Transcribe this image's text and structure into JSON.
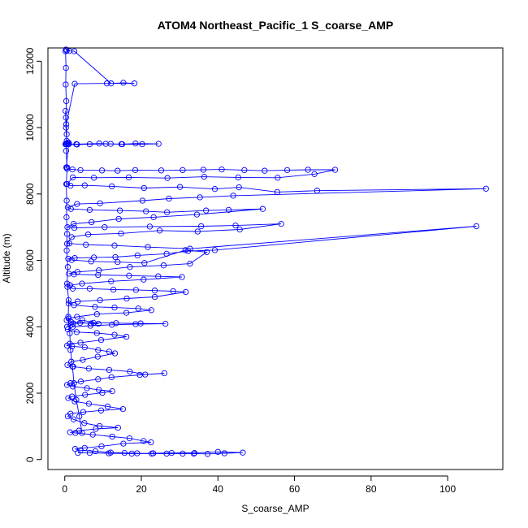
{
  "chart_data": {
    "type": "line",
    "title": "ATOM4 Northeast_Pacific_1 S_coarse_AMP",
    "xlabel": "S_coarse_AMP",
    "ylabel": "Altitude (m)",
    "xlim": [
      -4.4,
      114.4
    ],
    "ylim": [
      -300,
      12400
    ],
    "x_ticks": [
      0,
      20,
      40,
      60,
      80,
      100
    ],
    "y_ticks": [
      0,
      2000,
      4000,
      6000,
      8000,
      10000,
      12000
    ],
    "grid": false,
    "legend": "none",
    "color": "#0000ff",
    "marker": "open-circle",
    "series": [
      {
        "x": [
          0.3,
          0.5,
          1.2,
          2.5,
          12.1,
          15.3,
          18.2,
          11.0,
          2.6,
          0.4,
          0.2,
          0.3,
          0.5,
          1.0,
          0.4,
          0.2,
          0.6,
          0.2,
          0.3,
          0.5,
          1.1,
          0.8,
          3.0,
          9.0,
          12.0,
          15.0,
          18.5,
          24.5,
          20.2,
          14.8,
          10.7,
          6.5,
          3.2,
          1.0,
          0.4,
          0.6,
          2.0,
          4.1,
          9.7,
          13.8,
          18.4,
          25.2,
          30.8,
          36.2,
          41.0,
          46.9,
          52.2,
          58.1,
          63.5,
          70.6,
          65.2,
          55.6,
          45.3,
          36.4,
          26.8,
          16.7,
          7.6,
          2.1,
          0.6,
          1.5,
          5.2,
          12.3,
          20.7,
          30.1,
          39.2,
          45.5,
          55.5,
          65.9,
          110.0,
          44.0,
          35.3,
          27.2,
          20.3,
          9.2,
          3.2,
          0.8,
          1.6,
          6.5,
          14.4,
          21.2,
          26.7,
          36.9,
          42.8,
          51.7,
          34.5,
          23.2,
          14.1,
          7.0,
          2.3,
          0.7,
          2.5,
          10.4,
          22.2,
          35.6,
          44.6,
          56.5,
          45.7,
          34.7,
          24.8,
          14.7,
          6.1,
          1.8,
          0.6,
          1.2,
          5.5,
          13.0,
          21.7,
          32.7,
          107.5,
          39.2,
          32.2,
          26.6,
          19.0,
          13.2,
          7.6,
          2.6,
          0.9,
          1.8,
          6.9,
          13.8,
          20.8,
          31.5,
          37.1,
          32.7,
          25.8,
          17.0,
          8.9,
          3.3,
          1.1,
          2.4,
          8.7,
          16.8,
          24.4,
          30.6,
          20.6,
          12.1,
          4.5,
          1.4,
          0.7,
          2.1,
          6.5,
          12.7,
          18.6,
          23.5,
          28.3,
          31.6,
          23.5,
          16.2,
          9.2,
          3.4,
          1.0,
          2.4,
          7.9,
          13.0,
          19.2,
          22.6,
          16.1,
          8.4,
          3.2,
          1.0,
          0.5,
          1.6,
          4.0,
          6.9,
          8.8,
          4.6,
          1.5,
          0.6,
          2.2,
          7.5,
          13.4,
          19.8,
          26.3,
          18.5,
          12.3,
          6.7,
          2.1,
          0.8,
          3.1,
          8.4,
          13.0,
          16.1,
          9.5,
          4.1,
          1.3,
          0.6,
          1.9,
          5.2,
          8.7,
          11.6,
          13.1,
          8.6,
          4.7,
          1.7,
          0.7,
          2.2,
          6.3,
          11.6,
          17.0,
          21.0,
          26.0,
          19.6,
          12.2,
          8.7,
          4.2,
          1.5,
          0.6,
          2.1,
          5.8,
          8.9,
          12.4,
          9.8,
          5.3,
          1.9,
          0.9,
          2.6,
          6.3,
          11.2,
          15.2,
          9.5,
          4.8,
          1.5,
          0.8,
          2.3,
          5.1,
          9.1,
          13.9,
          8.1,
          3.7,
          1.4,
          2.8,
          7.3,
          12.4,
          16.9,
          20.6,
          22.5,
          15.3,
          9.6,
          5.2,
          2.7,
          4.1,
          8.0,
          12.0,
          15.6,
          18.9,
          22.7,
          26.6,
          30.8,
          33.7,
          37.3,
          41.7,
          46.5,
          40.0,
          33.9,
          27.9,
          23.1,
          17.5,
          11.5,
          6.5,
          3.4
        ],
        "y": [
          12350,
          12320,
          12310,
          12300,
          11330,
          11350,
          11330,
          11330,
          11320,
          10100,
          10500,
          10000,
          9600,
          9550,
          9500,
          9500,
          9520,
          9500,
          9500,
          9530,
          9510,
          9500,
          9500,
          9520,
          9510,
          9500,
          9520,
          9510,
          9500,
          9500,
          9510,
          9500,
          9490,
          9500,
          8800,
          8760,
          8740,
          8720,
          8710,
          8700,
          8720,
          8710,
          8720,
          8730,
          8740,
          8720,
          8700,
          8720,
          8730,
          8730,
          8600,
          8490,
          8500,
          8520,
          8480,
          8500,
          8490,
          8500,
          8300,
          8250,
          8260,
          8230,
          8180,
          8210,
          8150,
          8200,
          8060,
          8100,
          8160,
          7950,
          7900,
          7860,
          7800,
          7720,
          7700,
          7600,
          7550,
          7520,
          7500,
          7480,
          7450,
          7500,
          7520,
          7550,
          7380,
          7300,
          7250,
          7150,
          7100,
          7000,
          6980,
          7000,
          7020,
          7030,
          7050,
          7100,
          6930,
          6870,
          6900,
          6810,
          6780,
          6700,
          6500,
          6510,
          6470,
          6450,
          6400,
          6350,
          7030,
          6310,
          6280,
          6200,
          6150,
          6100,
          6090,
          6070,
          6050,
          6010,
          5970,
          5950,
          5920,
          6310,
          6250,
          5900,
          5850,
          5800,
          5700,
          5650,
          5600,
          5580,
          5560,
          5540,
          5520,
          5500,
          5420,
          5370,
          5300,
          5250,
          5200,
          5150,
          5150,
          5120,
          5110,
          5090,
          5070,
          5050,
          4900,
          4850,
          4800,
          4760,
          4700,
          4650,
          4600,
          4580,
          4550,
          4500,
          4420,
          4380,
          4300,
          4250,
          4200,
          4150,
          4120,
          4100,
          4090,
          4200,
          4050,
          4000,
          4100,
          4120,
          4110,
          4100,
          4090,
          4080,
          4060,
          4030,
          4000,
          3920,
          3840,
          3810,
          3760,
          3700,
          3600,
          3520,
          3490,
          3430,
          3410,
          3380,
          3300,
          3250,
          3200,
          3100,
          3000,
          2950,
          2850,
          2800,
          2740,
          2700,
          2650,
          2560,
          2600,
          2550,
          2480,
          2420,
          2350,
          2300,
          2250,
          2200,
          2150,
          2100,
          2060,
          2010,
          1950,
          1900,
          1850,
          1750,
          1680,
          1600,
          1520,
          1480,
          1430,
          1380,
          1300,
          1210,
          1100,
          1010,
          960,
          920,
          870,
          820,
          800,
          750,
          690,
          640,
          560,
          520,
          480,
          400,
          350,
          320,
          280,
          250,
          210,
          200,
          190,
          180,
          180,
          180,
          180,
          170,
          190,
          210,
          230,
          200,
          200,
          190,
          180,
          190,
          200,
          200
        ]
      },
      {
        "x": [
          0.2,
          0.3,
          0.25,
          0.4,
          0.3,
          0.5,
          0.35,
          0.6,
          0.4,
          0.5,
          0.45,
          0.6,
          0.5,
          0.8,
          0.6,
          1.0,
          0.9,
          1.3,
          1.5,
          2.0,
          2.4,
          3.0,
          3.8,
          4.5
        ],
        "y": [
          12300,
          11800,
          11300,
          10800,
          10300,
          9800,
          9300,
          8800,
          8300,
          7800,
          7300,
          6800,
          6300,
          5800,
          5300,
          4800,
          4300,
          3800,
          3300,
          2800,
          2300,
          1800,
          1300,
          800
        ]
      }
    ]
  }
}
